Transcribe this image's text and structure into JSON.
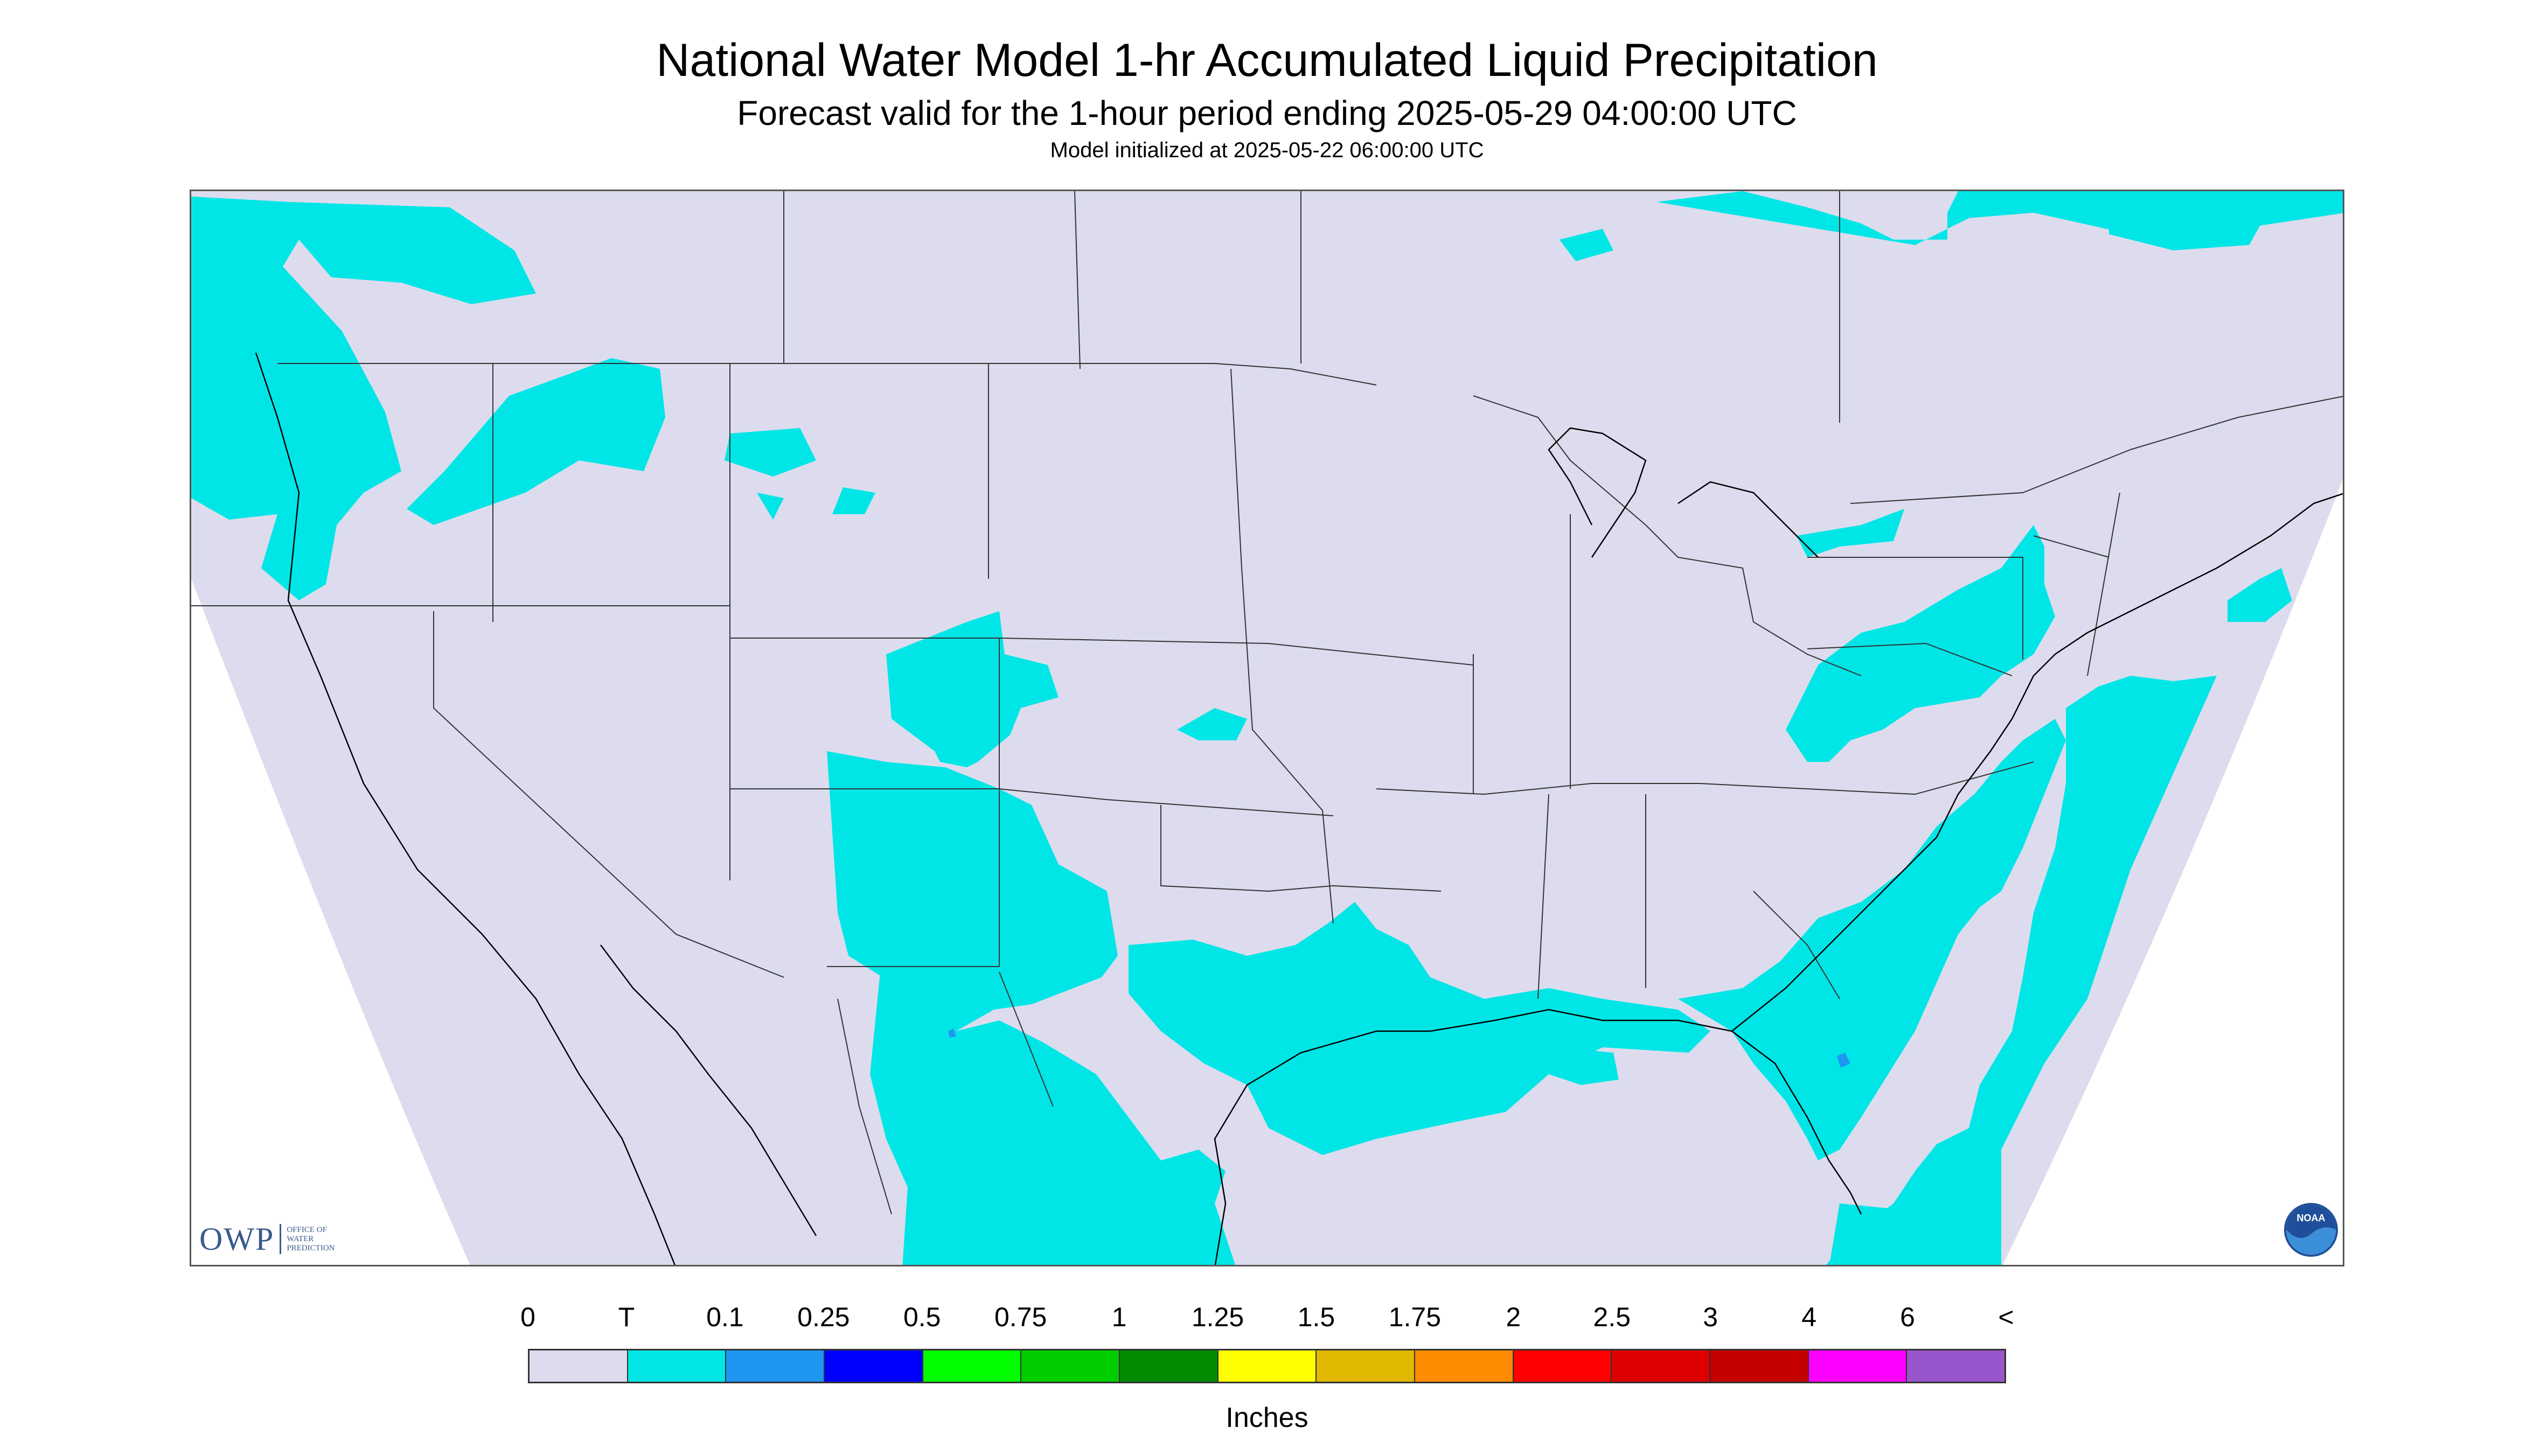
{
  "header": {
    "title": "National Water Model 1-hr Accumulated Liquid Precipitation",
    "subtitle": "Forecast valid for the 1-hour period ending 2025-05-29 04:00:00 UTC",
    "initialized": "Model initialized at 2025-05-22 06:00:00 UTC"
  },
  "map": {
    "background_color": "#dcdcee",
    "outside_domain_color": "#ffffff",
    "trace_color": "#00e6e6",
    "light_blue_color": "#1e96f0",
    "boundary_color": "#333333",
    "coast_color": "#000000"
  },
  "logos": {
    "owp_mark": "OWP",
    "owp_text": [
      "OFFICE OF",
      "WATER",
      "PREDICTION"
    ],
    "noaa_text": "NOAA"
  },
  "legend": {
    "labels": [
      "0",
      "T",
      "0.1",
      "0.25",
      "0.5",
      "0.75",
      "1",
      "1.25",
      "1.5",
      "1.75",
      "2",
      "2.5",
      "3",
      "4",
      "6",
      "<"
    ],
    "colors": [
      "#dcdcee",
      "#00e6e6",
      "#1e96f0",
      "#0000ff",
      "#00ff00",
      "#00cd00",
      "#008b00",
      "#ffff00",
      "#e0b800",
      "#ff8c00",
      "#ff0000",
      "#dd0000",
      "#c40000",
      "#ff00ff",
      "#9955cc"
    ],
    "units": "Inches"
  }
}
